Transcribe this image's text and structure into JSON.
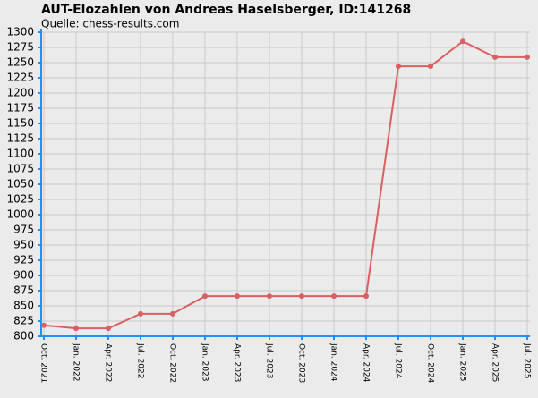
{
  "chart_data": {
    "type": "line",
    "title": "AUT-Elozahlen von Andreas Haselsberger, ID:141268",
    "subtitle": "Quelle: chess-results.com",
    "categories": [
      "Oct. 2021",
      "Jan. 2022",
      "Apr. 2022",
      "Jul. 2022",
      "Oct. 2022",
      "Jan. 2023",
      "Apr. 2023",
      "Jul. 2023",
      "Oct. 2023",
      "Jan. 2024",
      "Apr. 2024",
      "Jul. 2024",
      "Oct. 2024",
      "Jan. 2025",
      "Apr. 2025",
      "Jul. 2025"
    ],
    "values": [
      818,
      813,
      813,
      837,
      837,
      866,
      866,
      866,
      866,
      866,
      866,
      1244,
      1244,
      1285,
      1259,
      1259
    ],
    "color": "#d9605e",
    "ylim": [
      800,
      1300
    ],
    "yticks": [
      800,
      825,
      850,
      875,
      900,
      925,
      950,
      975,
      1000,
      1025,
      1050,
      1075,
      1100,
      1125,
      1150,
      1175,
      1200,
      1225,
      1250,
      1275,
      1300
    ],
    "grid": true
  }
}
